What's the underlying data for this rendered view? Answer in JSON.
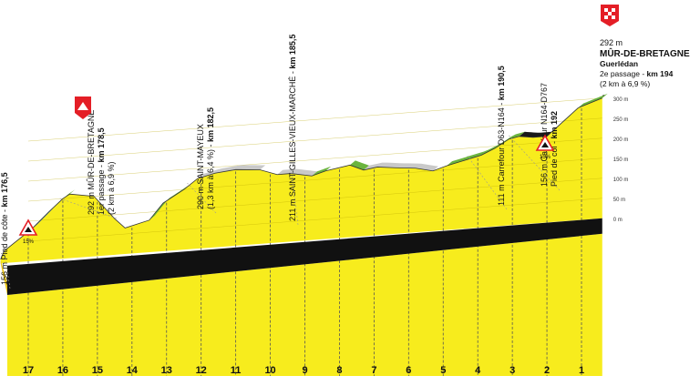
{
  "chart_data": {
    "type": "area",
    "title": "",
    "xlabel": "",
    "ylabel": "",
    "ylim": [
      0,
      300
    ],
    "y_ticks": [
      "300 m",
      "250 m",
      "200 m",
      "150 m",
      "100 m",
      "50 m",
      "0 m"
    ],
    "y_tick_values": [
      300,
      250,
      200,
      150,
      100,
      50,
      0
    ],
    "x_km_markers": [
      "17",
      "16",
      "15",
      "14",
      "13",
      "12",
      "11",
      "10",
      "9",
      "8",
      "7",
      "6",
      "5",
      "4",
      "3",
      "2",
      "1"
    ],
    "x_km_marker_values": [
      17,
      16,
      15,
      14,
      13,
      12,
      11,
      10,
      9,
      8,
      7,
      6,
      5,
      4,
      3,
      2,
      1
    ],
    "x_unit": "km to finish",
    "colors": {
      "profile_fill": "#f7ec1d",
      "base_band": "#111111",
      "gradient_green": "#6ab43e",
      "gradient_blue": "#1e78c2",
      "gradient_black": "#1a1a1a",
      "gradient_red": "#e41e26",
      "surface_gray": "#c9c9c9",
      "divider": "#555555"
    },
    "profile": {
      "x_km_to_finish": [
        17.8,
        17.7,
        16.9,
        16.4,
        16,
        15.8,
        15.1,
        14.5,
        14.2,
        13.5,
        13.1,
        12.5,
        12.1,
        11.6,
        11,
        10.3,
        9.8,
        9.4,
        8.8,
        8.4,
        7.7,
        7.3,
        6.9,
        6.4,
        5.8,
        5.3,
        4.9,
        4.4,
        3.9,
        3.5,
        3.1,
        2.8,
        2.4,
        2.0,
        1.1,
        0.4
      ],
      "elevation_m": [
        10,
        30,
        80,
        120,
        150,
        160,
        150,
        90,
        65,
        80,
        120,
        150,
        175,
        185,
        190,
        185,
        170,
        170,
        160,
        170,
        180,
        165,
        170,
        165,
        160,
        150,
        160,
        170,
        180,
        195,
        215,
        220,
        215,
        215,
        280,
        300
      ]
    },
    "segments": [
      {
        "from": 17.7,
        "to": 16.9,
        "color": "gradient_black"
      },
      {
        "from": 16.9,
        "to": 16.4,
        "color": "gradient_blue"
      },
      {
        "from": 16.4,
        "to": 15.8,
        "color": "gradient_green"
      },
      {
        "from": 13.5,
        "to": 12.5,
        "color": "gradient_green"
      },
      {
        "from": 12.5,
        "to": 12.1,
        "color": "gradient_red"
      },
      {
        "from": 12.1,
        "to": 10.3,
        "color": "surface_gray"
      },
      {
        "from": 9.8,
        "to": 8.8,
        "color": "surface_gray"
      },
      {
        "from": 8.8,
        "to": 8.4,
        "color": "gradient_green"
      },
      {
        "from": 7.7,
        "to": 7.3,
        "color": "gradient_green"
      },
      {
        "from": 7.3,
        "to": 5.3,
        "color": "surface_gray"
      },
      {
        "from": 4.9,
        "to": 2.8,
        "color": "gradient_green"
      },
      {
        "from": 2.8,
        "to": 1.8,
        "color": "gradient_black"
      },
      {
        "from": 1.8,
        "to": 1.1,
        "color": "gradient_blue"
      },
      {
        "from": 1.1,
        "to": 0.4,
        "color": "gradient_green"
      }
    ],
    "annotations": [
      {
        "id": "a1",
        "at": 17.7,
        "text_plain": "156 m Pied de côte - ",
        "text_bold": "km 176,5"
      },
      {
        "id": "a2",
        "at": 16.1,
        "text_plain": "292 m MÛR-DE-BRETAGNE",
        "line2_plain": "1er passage - ",
        "line2_bold": "km 178,5",
        "line3_plain": "(2 km à 6,9 %)"
      },
      {
        "id": "a3",
        "at": 12.4,
        "text_plain": "290 m SAINT-MAYEUX",
        "line2_plain": "(1,3 km à 6,4 %) - ",
        "line2_bold": "km 182,5"
      },
      {
        "id": "a4",
        "at": 9.4,
        "text_plain": "211 m SAINT-GILLES-VIEUX-MARCHÉ - ",
        "text_bold": "km 185,5"
      },
      {
        "id": "a5",
        "at": 4.3,
        "text_plain": "111 m Carrefour D63-N164 - ",
        "text_bold": "km 190,5"
      },
      {
        "id": "a6",
        "at": 3.1,
        "text_plain": "156 m Carrefour N164-D767",
        "line2_plain": "Pied de col - ",
        "line2_bold": "km 192"
      }
    ],
    "finish": {
      "altitude": "292 m",
      "name": "MÛR-DE-BRETAGNE",
      "subtitle": "Guerlédan",
      "passage_plain": "2e passage - ",
      "passage_bold": "km 194",
      "gradient_note": "(2 km à 6,9 %)"
    },
    "climb_signs": [
      {
        "at": 17.7,
        "label": "15%"
      },
      {
        "at": 2.0,
        "label": "15%"
      }
    ]
  }
}
